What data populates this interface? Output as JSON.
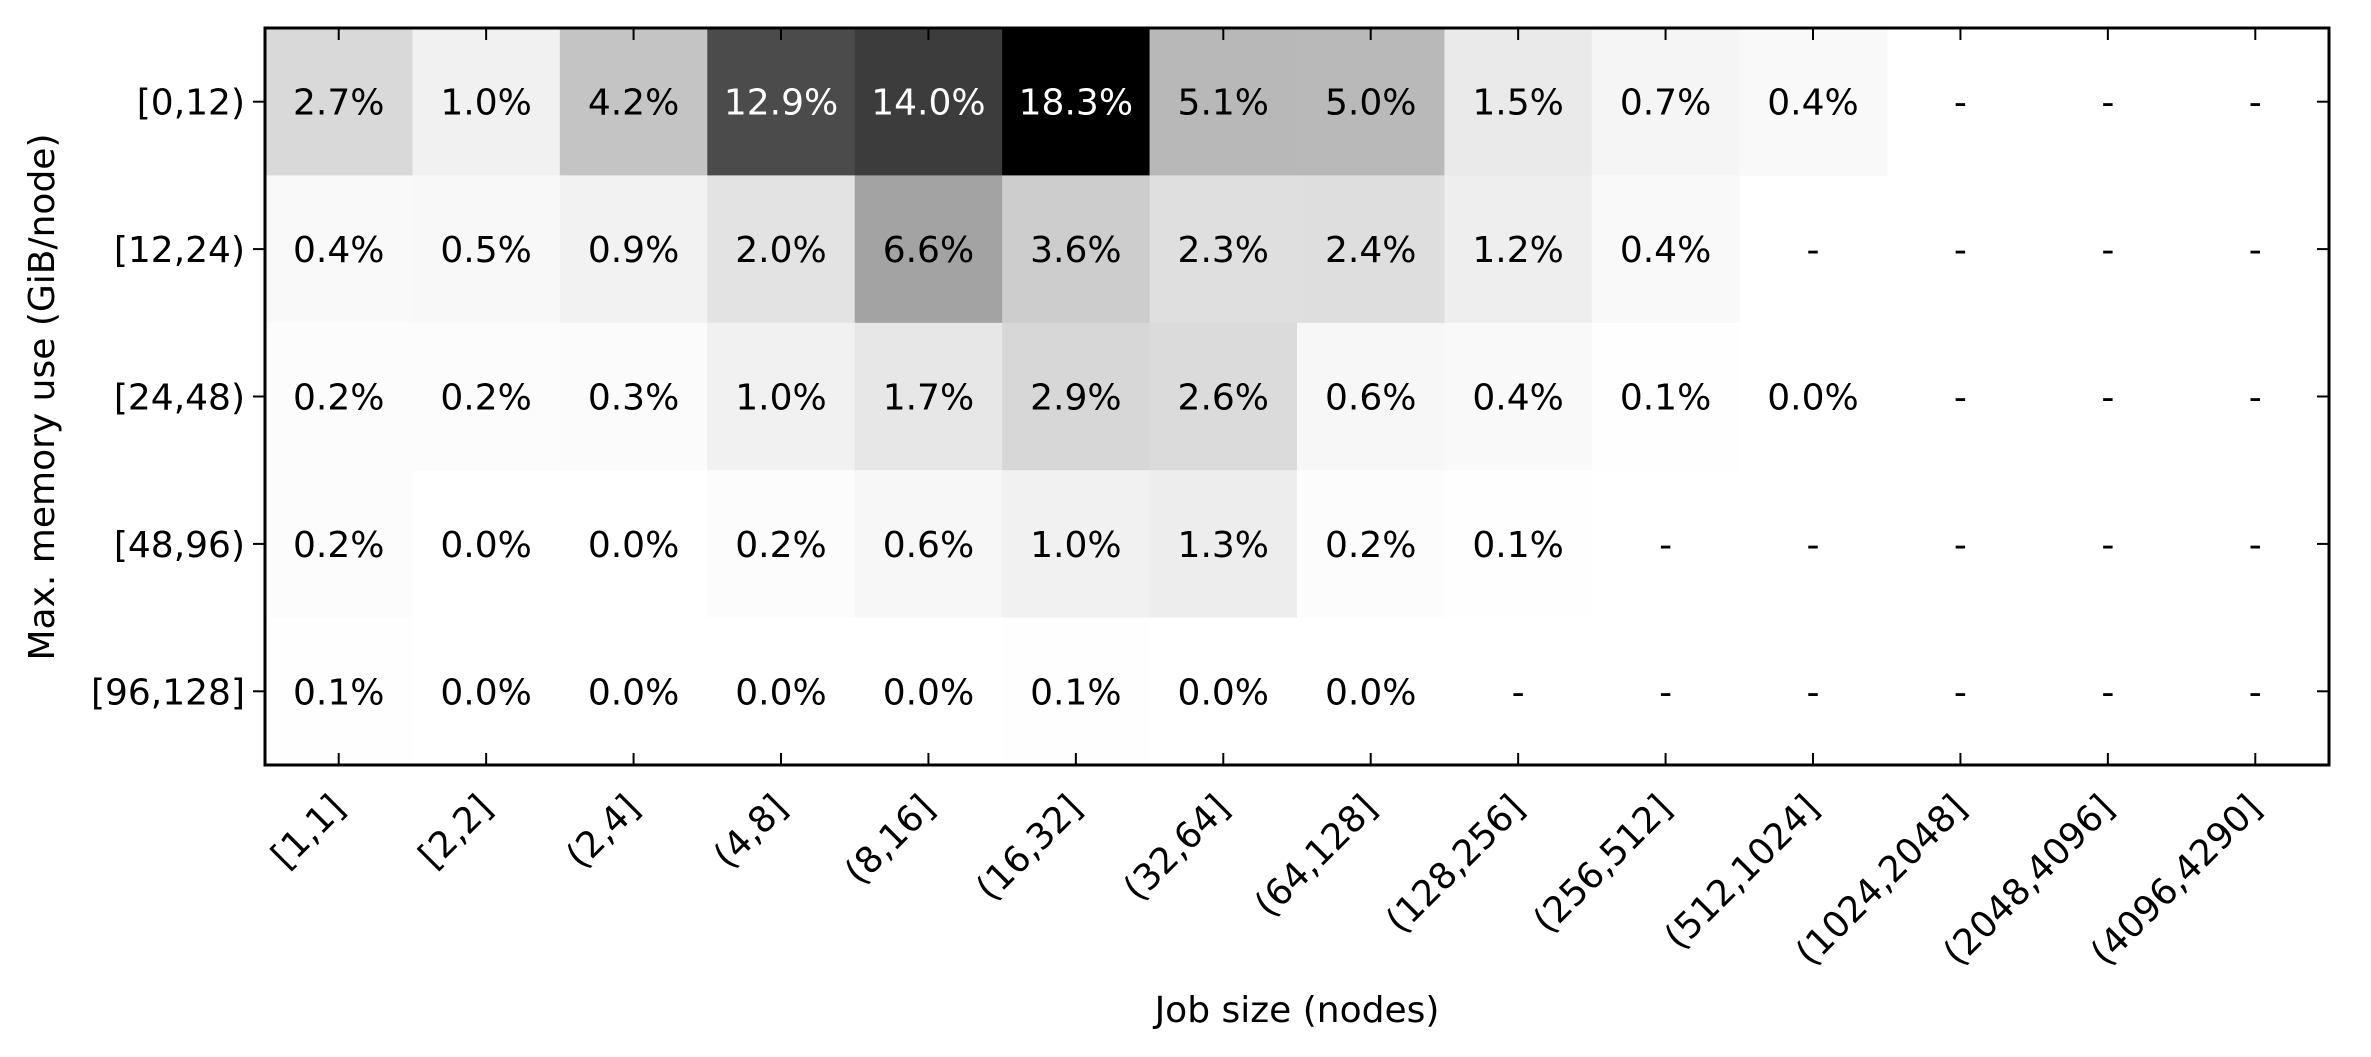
{
  "chart_data": {
    "type": "heatmap",
    "title": "",
    "xlabel": "Job size (nodes)",
    "ylabel": "Max. memory use (GiB/node)",
    "x_categories": [
      "[1,1]",
      "[2,2]",
      "(2,4]",
      "(4,8]",
      "(8,16]",
      "(16,32]",
      "(32,64]",
      "(64,128]",
      "(128,256]",
      "(256,512]",
      "(512,1024]",
      "(1024,2048]",
      "(2048,4096]",
      "(4096,4290]"
    ],
    "y_categories": [
      "[0,12)",
      "[12,24)",
      "[24,48)",
      "[48,96)",
      "[96,128]"
    ],
    "values": [
      [
        2.7,
        1.0,
        4.2,
        12.9,
        14.0,
        18.3,
        5.1,
        5.0,
        1.5,
        0.7,
        0.4,
        null,
        null,
        null
      ],
      [
        0.4,
        0.5,
        0.9,
        2.0,
        6.6,
        3.6,
        2.3,
        2.4,
        1.2,
        0.4,
        null,
        null,
        null,
        null
      ],
      [
        0.2,
        0.2,
        0.3,
        1.0,
        1.7,
        2.9,
        2.6,
        0.6,
        0.4,
        0.1,
        0.0,
        null,
        null,
        null
      ],
      [
        0.2,
        0.0,
        0.0,
        0.2,
        0.6,
        1.0,
        1.3,
        0.2,
        0.1,
        null,
        null,
        null,
        null,
        null
      ],
      [
        0.1,
        0.0,
        0.0,
        0.0,
        0.0,
        0.1,
        0.0,
        0.0,
        null,
        null,
        null,
        null,
        null,
        null
      ]
    ],
    "value_suffix": "%",
    "missing_label": "-",
    "colormap": "greys",
    "vmin": 0,
    "vmax": 18.3,
    "grid": false
  }
}
